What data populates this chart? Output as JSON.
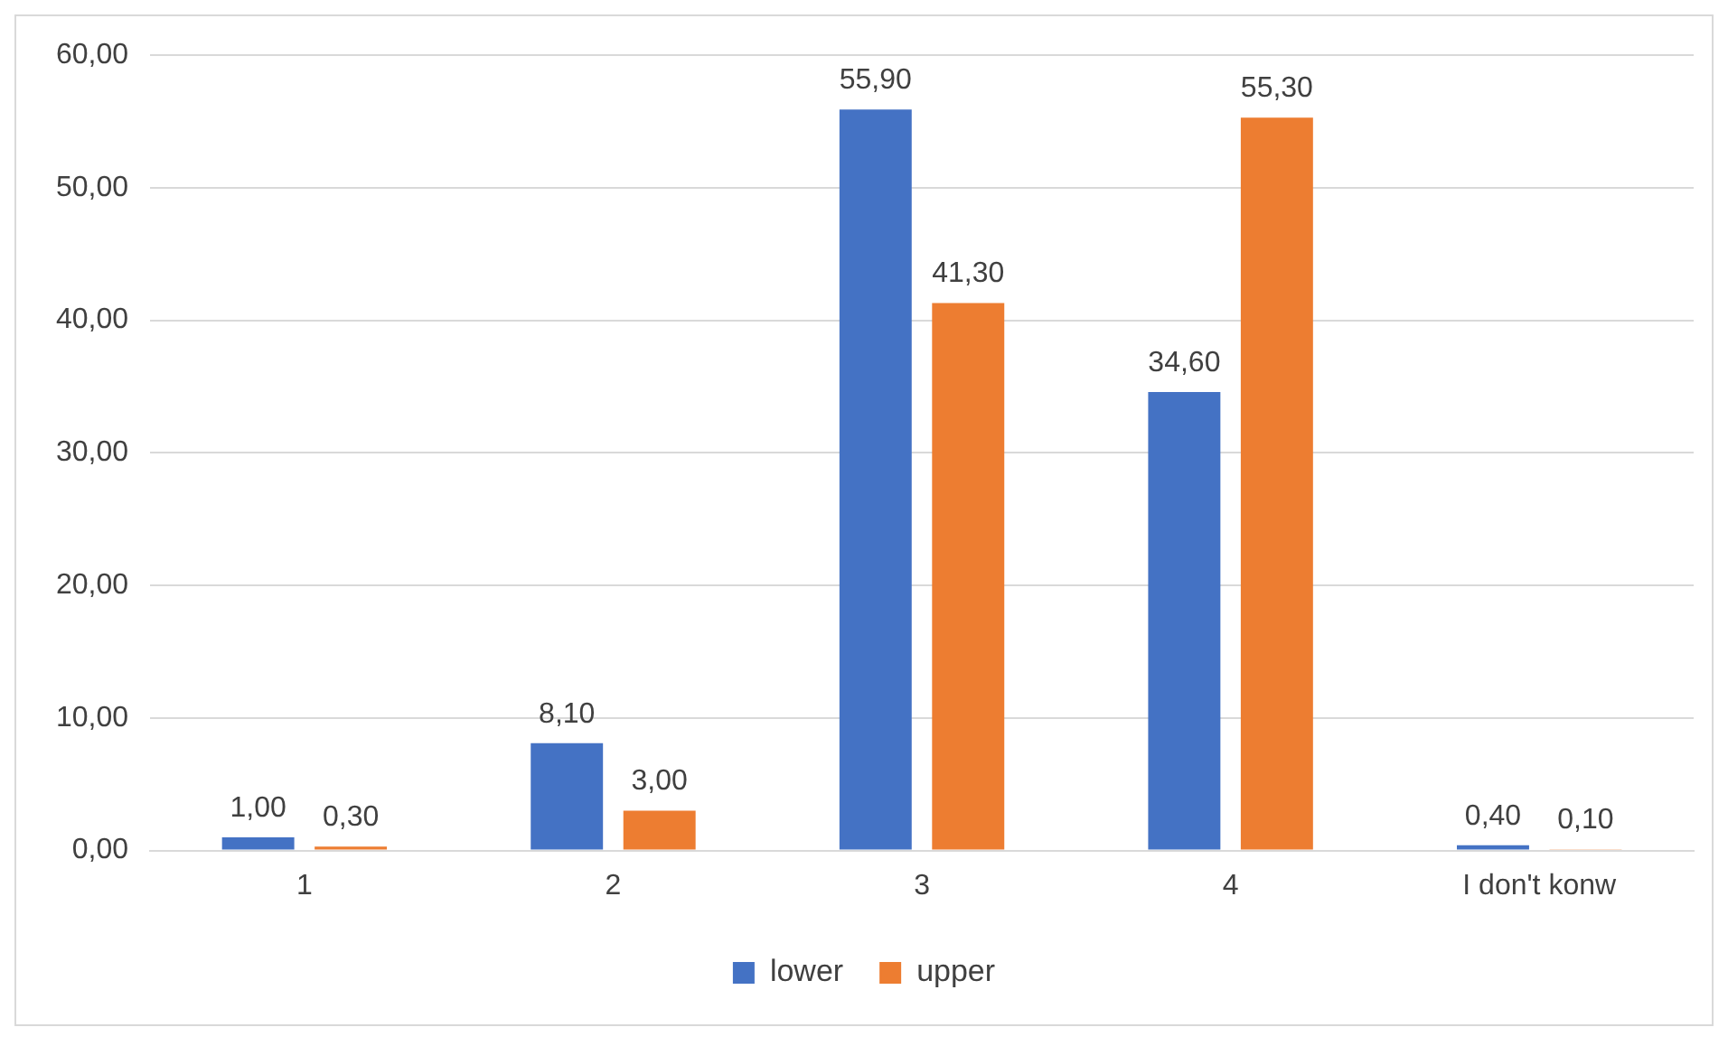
{
  "chart_data": {
    "type": "bar",
    "categories": [
      "1",
      "2",
      "3",
      "4",
      "I don't konw"
    ],
    "series": [
      {
        "name": "lower",
        "color": "#4472c4",
        "values": [
          1.0,
          8.1,
          55.9,
          34.6,
          0.4
        ],
        "value_labels": [
          "1,00",
          "8,10",
          "55,90",
          "34,60",
          "0,40"
        ]
      },
      {
        "name": "upper",
        "color": "#ed7d31",
        "values": [
          0.3,
          3.0,
          41.3,
          55.3,
          0.1
        ],
        "value_labels": [
          "0,30",
          "3,00",
          "41,30",
          "55,30",
          "0,10"
        ]
      }
    ],
    "ylim": [
      0,
      60
    ],
    "yticks": [
      {
        "value": 0,
        "label": "0,00"
      },
      {
        "value": 10,
        "label": "10,00"
      },
      {
        "value": 20,
        "label": "20,00"
      },
      {
        "value": 30,
        "label": "30,00"
      },
      {
        "value": 40,
        "label": "40,00"
      },
      {
        "value": 50,
        "label": "50,00"
      },
      {
        "value": 60,
        "label": "60,00"
      }
    ],
    "grid": "y",
    "legend": "bottom"
  }
}
